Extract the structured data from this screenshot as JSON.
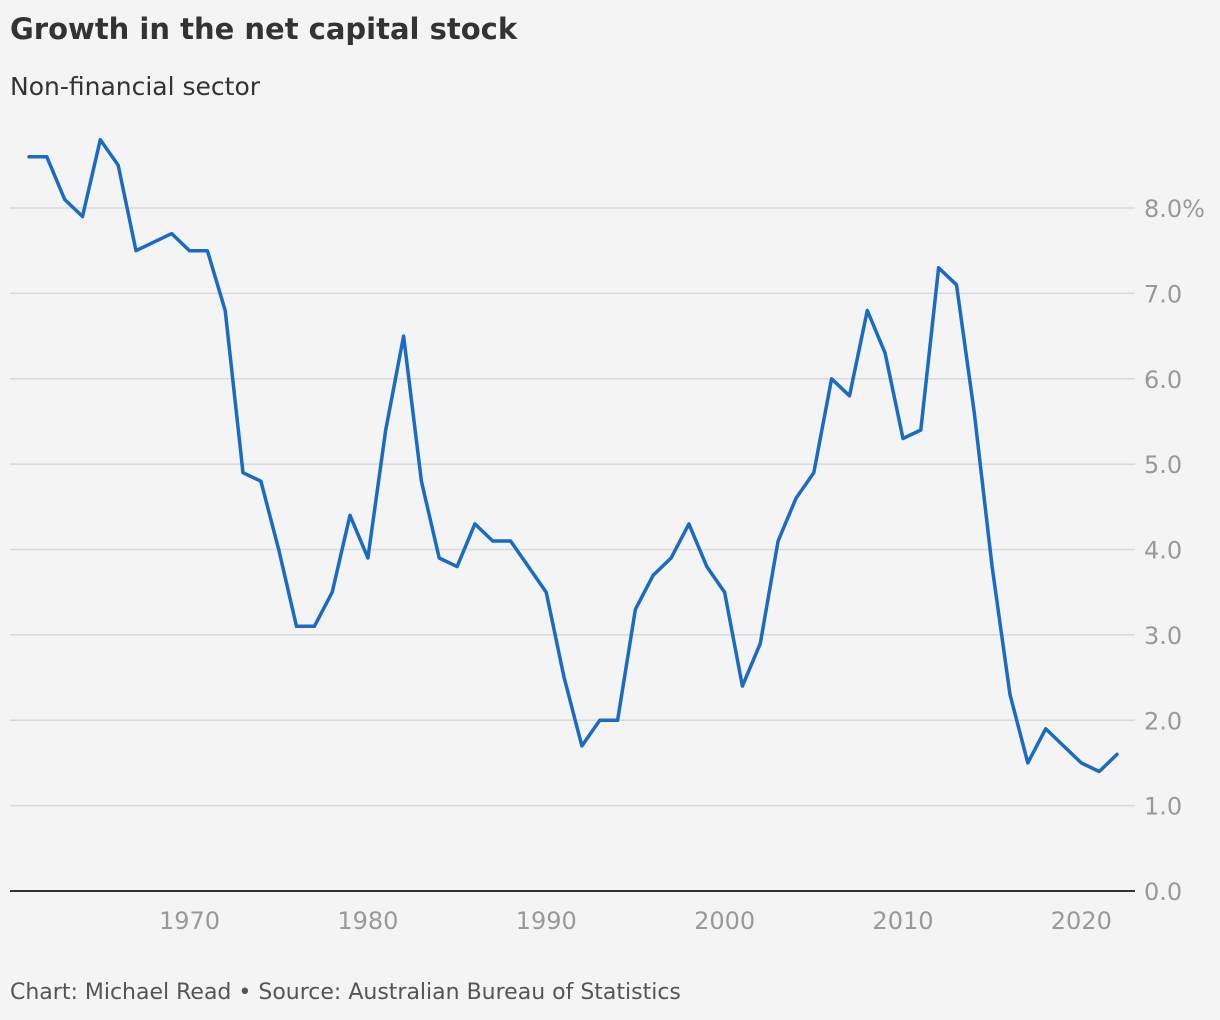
{
  "chart_data": {
    "type": "line",
    "title": "Growth in the net capital stock",
    "subtitle": "Non-financial sector",
    "xlabel": "",
    "ylabel": "",
    "xlim": [
      1960,
      2023
    ],
    "ylim": [
      0,
      8.5
    ],
    "x_ticks": [
      1970,
      1980,
      1990,
      2000,
      2010,
      2020
    ],
    "y_ticks": [
      0,
      1,
      2,
      3,
      4,
      5,
      6,
      7,
      8
    ],
    "y_tick_labels": [
      "0.0",
      "1.0",
      "2.0",
      "3.0",
      "4.0",
      "5.0",
      "6.0",
      "7.0",
      "8.0%"
    ],
    "grid": true,
    "line_color": "#1a6bc4",
    "series": [
      {
        "x": [
          1961,
          1962,
          1963,
          1964,
          1965,
          1966,
          1967,
          1968,
          1969,
          1970,
          1971,
          1972,
          1973,
          1974,
          1975,
          1976,
          1977,
          1978,
          1979,
          1980,
          1981,
          1982,
          1983,
          1984,
          1985,
          1986,
          1987,
          1988,
          1989,
          1990,
          1991,
          1992,
          1993,
          1994,
          1995,
          1996,
          1997,
          1998,
          1999,
          2000,
          2001,
          2002,
          2003,
          2004,
          2005,
          2006,
          2007,
          2008,
          2009,
          2010,
          2011,
          2012,
          2013,
          2014,
          2015,
          2016,
          2017,
          2018,
          2019,
          2020,
          2021,
          2022
        ],
        "values": [
          8.6,
          8.6,
          8.1,
          7.9,
          8.8,
          8.5,
          7.5,
          7.6,
          7.7,
          7.5,
          7.5,
          6.8,
          4.9,
          4.8,
          4.0,
          3.1,
          3.1,
          3.5,
          4.4,
          3.9,
          5.4,
          6.5,
          4.8,
          3.9,
          3.8,
          4.3,
          4.1,
          4.1,
          3.8,
          3.5,
          2.5,
          1.7,
          2.0,
          2.0,
          3.3,
          3.7,
          3.9,
          4.3,
          3.8,
          3.5,
          2.4,
          2.9,
          4.1,
          4.6,
          4.9,
          6.0,
          5.8,
          6.8,
          6.3,
          5.3,
          5.4,
          7.3,
          7.1,
          5.6,
          3.8,
          2.3,
          1.5,
          1.9,
          1.7,
          1.5,
          1.4,
          1.6
        ]
      }
    ]
  },
  "footer": "Chart: Michael Read • Source: Australian Bureau of Statistics"
}
